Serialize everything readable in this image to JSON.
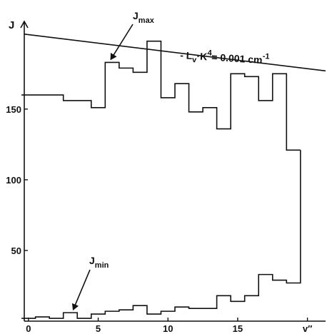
{
  "chart_data": {
    "type": "line",
    "title": "",
    "xlabel": "v″",
    "ylabel": "J",
    "xlim": [
      -0.3,
      21.3
    ],
    "ylim": [
      0,
      212
    ],
    "x_ticks": [
      0,
      5,
      10,
      15,
      20
    ],
    "x_tick_labels": [
      "0",
      "5",
      "10",
      "15",
      "v″"
    ],
    "y_ticks": [
      50,
      100,
      150
    ],
    "y_tick_labels": [
      "50",
      "100",
      "150"
    ],
    "step": "mid",
    "grid": false,
    "legend": "none",
    "series": [
      {
        "id": "J_max",
        "label_main": "J",
        "label_sub": "max",
        "x": [
          0,
          1,
          2,
          3,
          4,
          5,
          6,
          7,
          8,
          9,
          10,
          11,
          12,
          13,
          14,
          15,
          16,
          17,
          18,
          19
        ],
        "values": [
          160,
          160,
          160,
          156,
          156,
          151,
          183,
          179,
          176,
          198,
          158,
          168,
          148,
          151,
          136,
          175,
          173,
          156,
          175,
          121
        ]
      },
      {
        "id": "J_min",
        "label_main": "J",
        "label_sub": "min",
        "x": [
          0,
          1,
          2,
          3,
          4,
          5,
          6,
          7,
          8,
          9,
          10,
          11,
          12,
          13,
          14,
          15,
          16,
          17,
          18,
          19
        ],
        "values": [
          2,
          3,
          2,
          6,
          2,
          5,
          7,
          8,
          11,
          5,
          7,
          10,
          9,
          9,
          18,
          14,
          18,
          33,
          29,
          27
        ]
      }
    ],
    "limit_line": {
      "label_prefix": "- L",
      "label_sub": "v",
      "label_mid": "·K",
      "label_sup": "4",
      "label_suffix": "= 0.001 cm",
      "label_unit_sup": "-1",
      "x": [
        -0.3,
        21.3
      ],
      "values": [
        203,
        177
      ]
    }
  }
}
